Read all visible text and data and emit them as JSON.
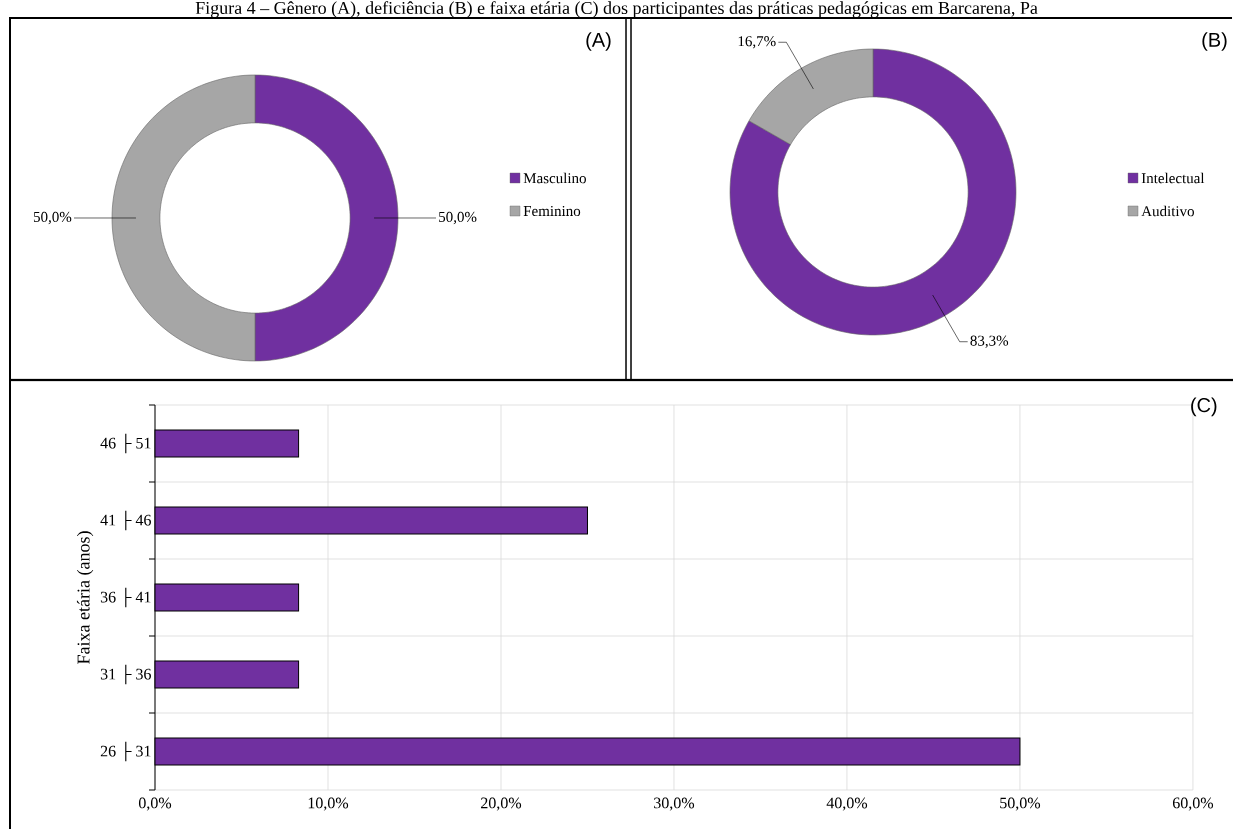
{
  "chart_data": [
    {
      "type": "donut",
      "title": "Figura 4 – Gênero (A), deficiência (B) e faixa etária (C) dos participantes das práticas pedagógicas em Barcarena, Pa",
      "categories": [
        "Masculino",
        "Feminino"
      ],
      "values": [
        50,
        50
      ],
      "colors": [
        "#7030a0",
        "#a6a6a6"
      ],
      "value_labels": [
        "50,0%",
        "50,0%"
      ],
      "legend": "right",
      "annotations": [
        "(A)"
      ]
    },
    {
      "type": "donut",
      "categories": [
        "Intelectual",
        "Auditivo"
      ],
      "values": [
        83.3,
        16.7
      ],
      "colors": [
        "#7030a0",
        "#a6a6a6"
      ],
      "value_labels": [
        "83,3%",
        "16,7%"
      ],
      "legend": "right",
      "annotations": [
        "(B)"
      ]
    },
    {
      "type": "bar",
      "orientation": "horizontal",
      "categories": [
        "46 ├ 51",
        "41 ├ 46",
        "36 ├ 41",
        "31 ├ 36",
        "26 ├ 31"
      ],
      "values": [
        8.3,
        25,
        8.3,
        8.3,
        50
      ],
      "color": "#7030a0",
      "ylabel": "Faixa etária (anos)",
      "xlim": [
        0,
        60
      ],
      "xticks": [
        {
          "value": 0,
          "label": "0,0%"
        },
        {
          "value": 10,
          "label": "10,0%"
        },
        {
          "value": 20,
          "label": "20,0%"
        },
        {
          "value": 30,
          "label": "30,0%"
        },
        {
          "value": 40,
          "label": "40,0%"
        },
        {
          "value": 50,
          "label": "50,0%"
        },
        {
          "value": 60,
          "label": "60,0%"
        }
      ],
      "grid": true,
      "annotations": [
        "(C)"
      ]
    }
  ]
}
